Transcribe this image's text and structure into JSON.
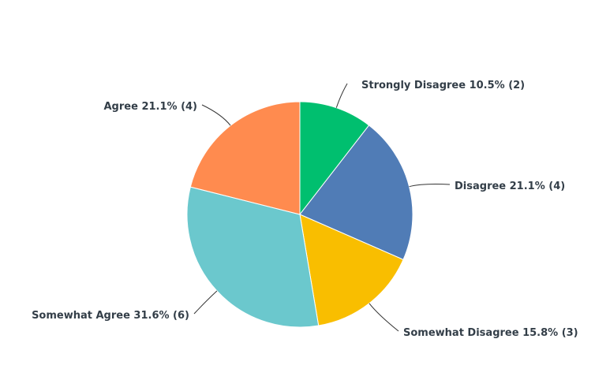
{
  "chart_data": {
    "type": "pie",
    "start_angle": "12 o'clock",
    "direction": "clockwise",
    "slices": [
      {
        "label": "Strongly Disagree 10.5% (2)",
        "category": "Strongly Disagree",
        "percent": 10.5,
        "count": 2,
        "color": "#00BF6F"
      },
      {
        "label": "Disagree 21.1% (4)",
        "category": "Disagree",
        "percent": 21.1,
        "count": 4,
        "color": "#507CB6"
      },
      {
        "label": "Somewhat Disagree 15.8% (3)",
        "category": "Somewhat Disagree",
        "percent": 15.8,
        "count": 3,
        "color": "#F9BE00"
      },
      {
        "label": "Somewhat Agree 31.6% (6)",
        "category": "Somewhat Agree",
        "percent": 31.6,
        "count": 6,
        "color": "#6BC8CD"
      },
      {
        "label": "Agree 21.1% (4)",
        "category": "Agree",
        "percent": 21.1,
        "count": 4,
        "color": "#FF8B4F"
      }
    ]
  }
}
